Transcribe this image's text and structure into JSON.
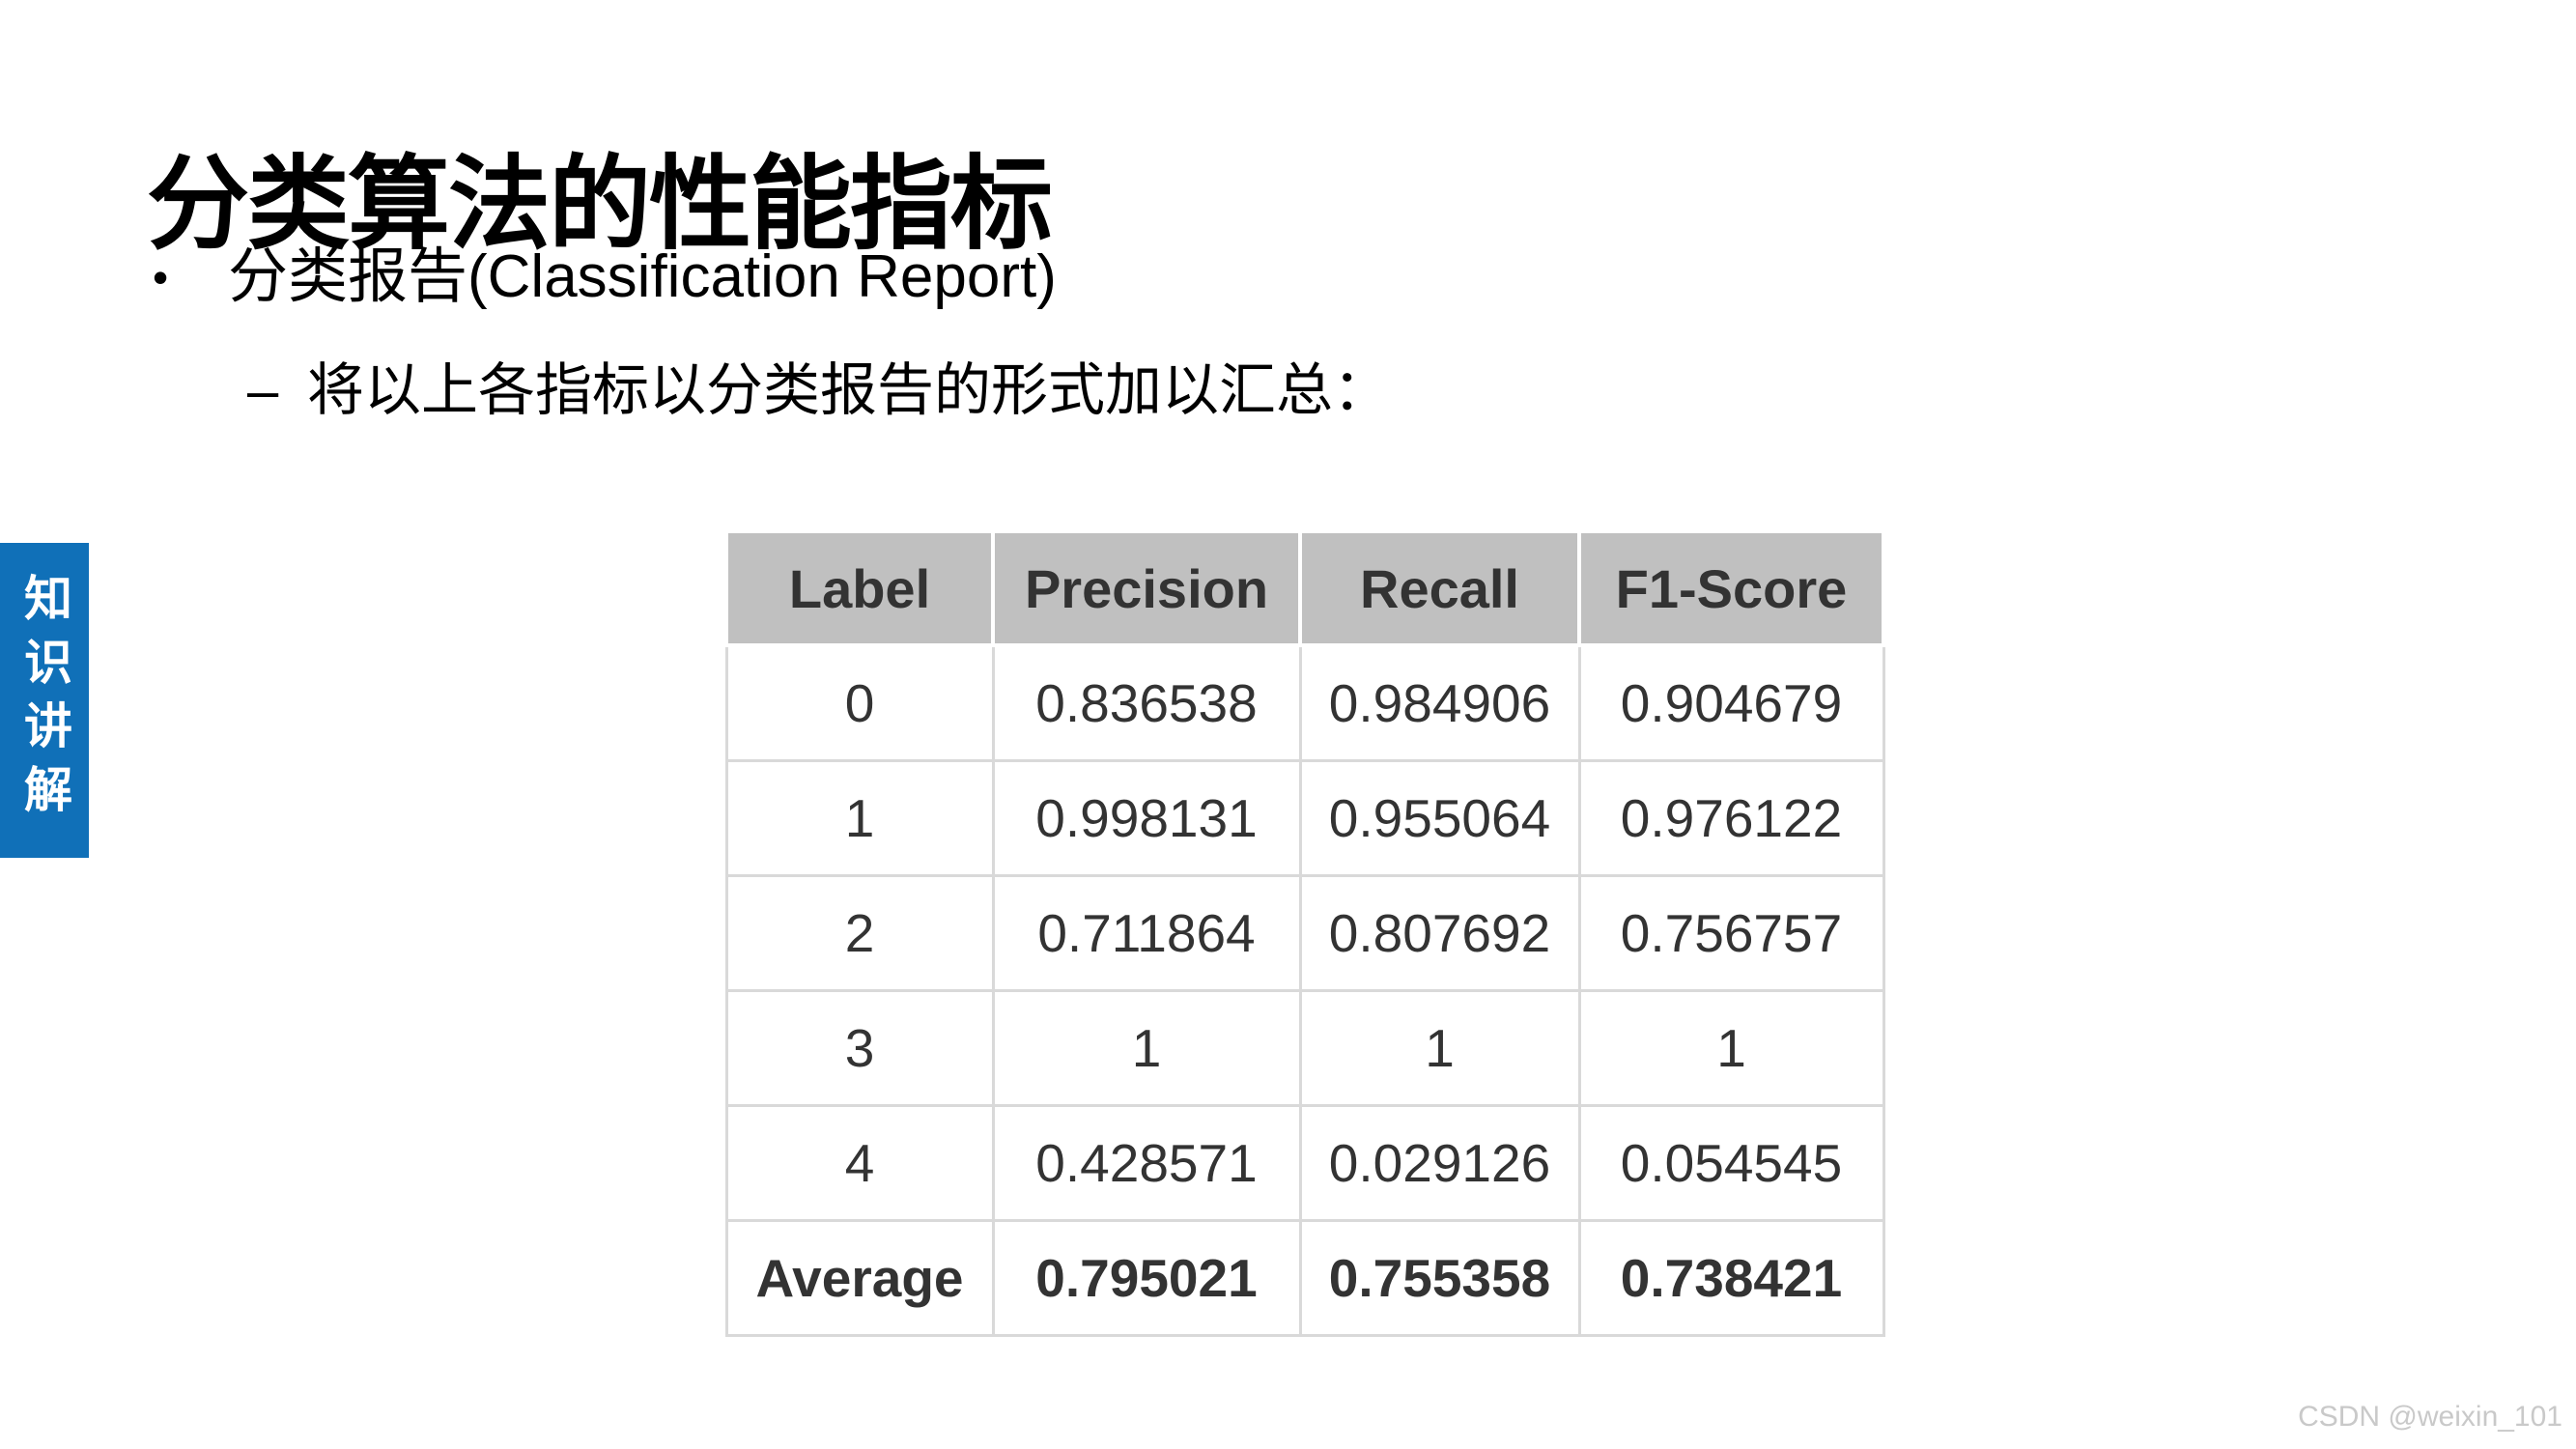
{
  "slide": {
    "title": "分类算法的性能指标",
    "bullet_marker": "•",
    "bullet_text": "分类报告(Classification Report)",
    "sub_bullet_marker": "–",
    "sub_bullet_text": "将以上各指标以分类报告的形式加以汇总："
  },
  "side_tab": {
    "label": "知识讲解",
    "background": "#1070B8",
    "text_color": "#FFFFFF"
  },
  "table": {
    "headers": [
      "Label",
      "Precision",
      "Recall",
      "F1-Score"
    ],
    "header_bg": "#C0C0C0",
    "border_color": "#D9D9D9",
    "rows": [
      {
        "cells": [
          "0",
          "0.836538",
          "0.984906",
          "0.904679"
        ],
        "bold": false
      },
      {
        "cells": [
          "1",
          "0.998131",
          "0.955064",
          "0.976122"
        ],
        "bold": false
      },
      {
        "cells": [
          "2",
          "0.711864",
          "0.807692",
          "0.756757"
        ],
        "bold": false
      },
      {
        "cells": [
          "3",
          "1",
          "1",
          "1"
        ],
        "bold": false
      },
      {
        "cells": [
          "4",
          "0.428571",
          "0.029126",
          "0.054545"
        ],
        "bold": false
      },
      {
        "cells": [
          "Average",
          "0.795021",
          "0.755358",
          "0.738421"
        ],
        "bold": true
      }
    ]
  },
  "watermark": "CSDN @weixin_101",
  "chart_data": {
    "type": "table",
    "title": "Classification Report",
    "columns": [
      "Label",
      "Precision",
      "Recall",
      "F1-Score"
    ],
    "rows": [
      [
        "0",
        0.836538,
        0.984906,
        0.904679
      ],
      [
        "1",
        0.998131,
        0.955064,
        0.976122
      ],
      [
        "2",
        0.711864,
        0.807692,
        0.756757
      ],
      [
        "3",
        1,
        1,
        1
      ],
      [
        "4",
        0.428571,
        0.029126,
        0.054545
      ],
      [
        "Average",
        0.795021,
        0.755358,
        0.738421
      ]
    ]
  }
}
